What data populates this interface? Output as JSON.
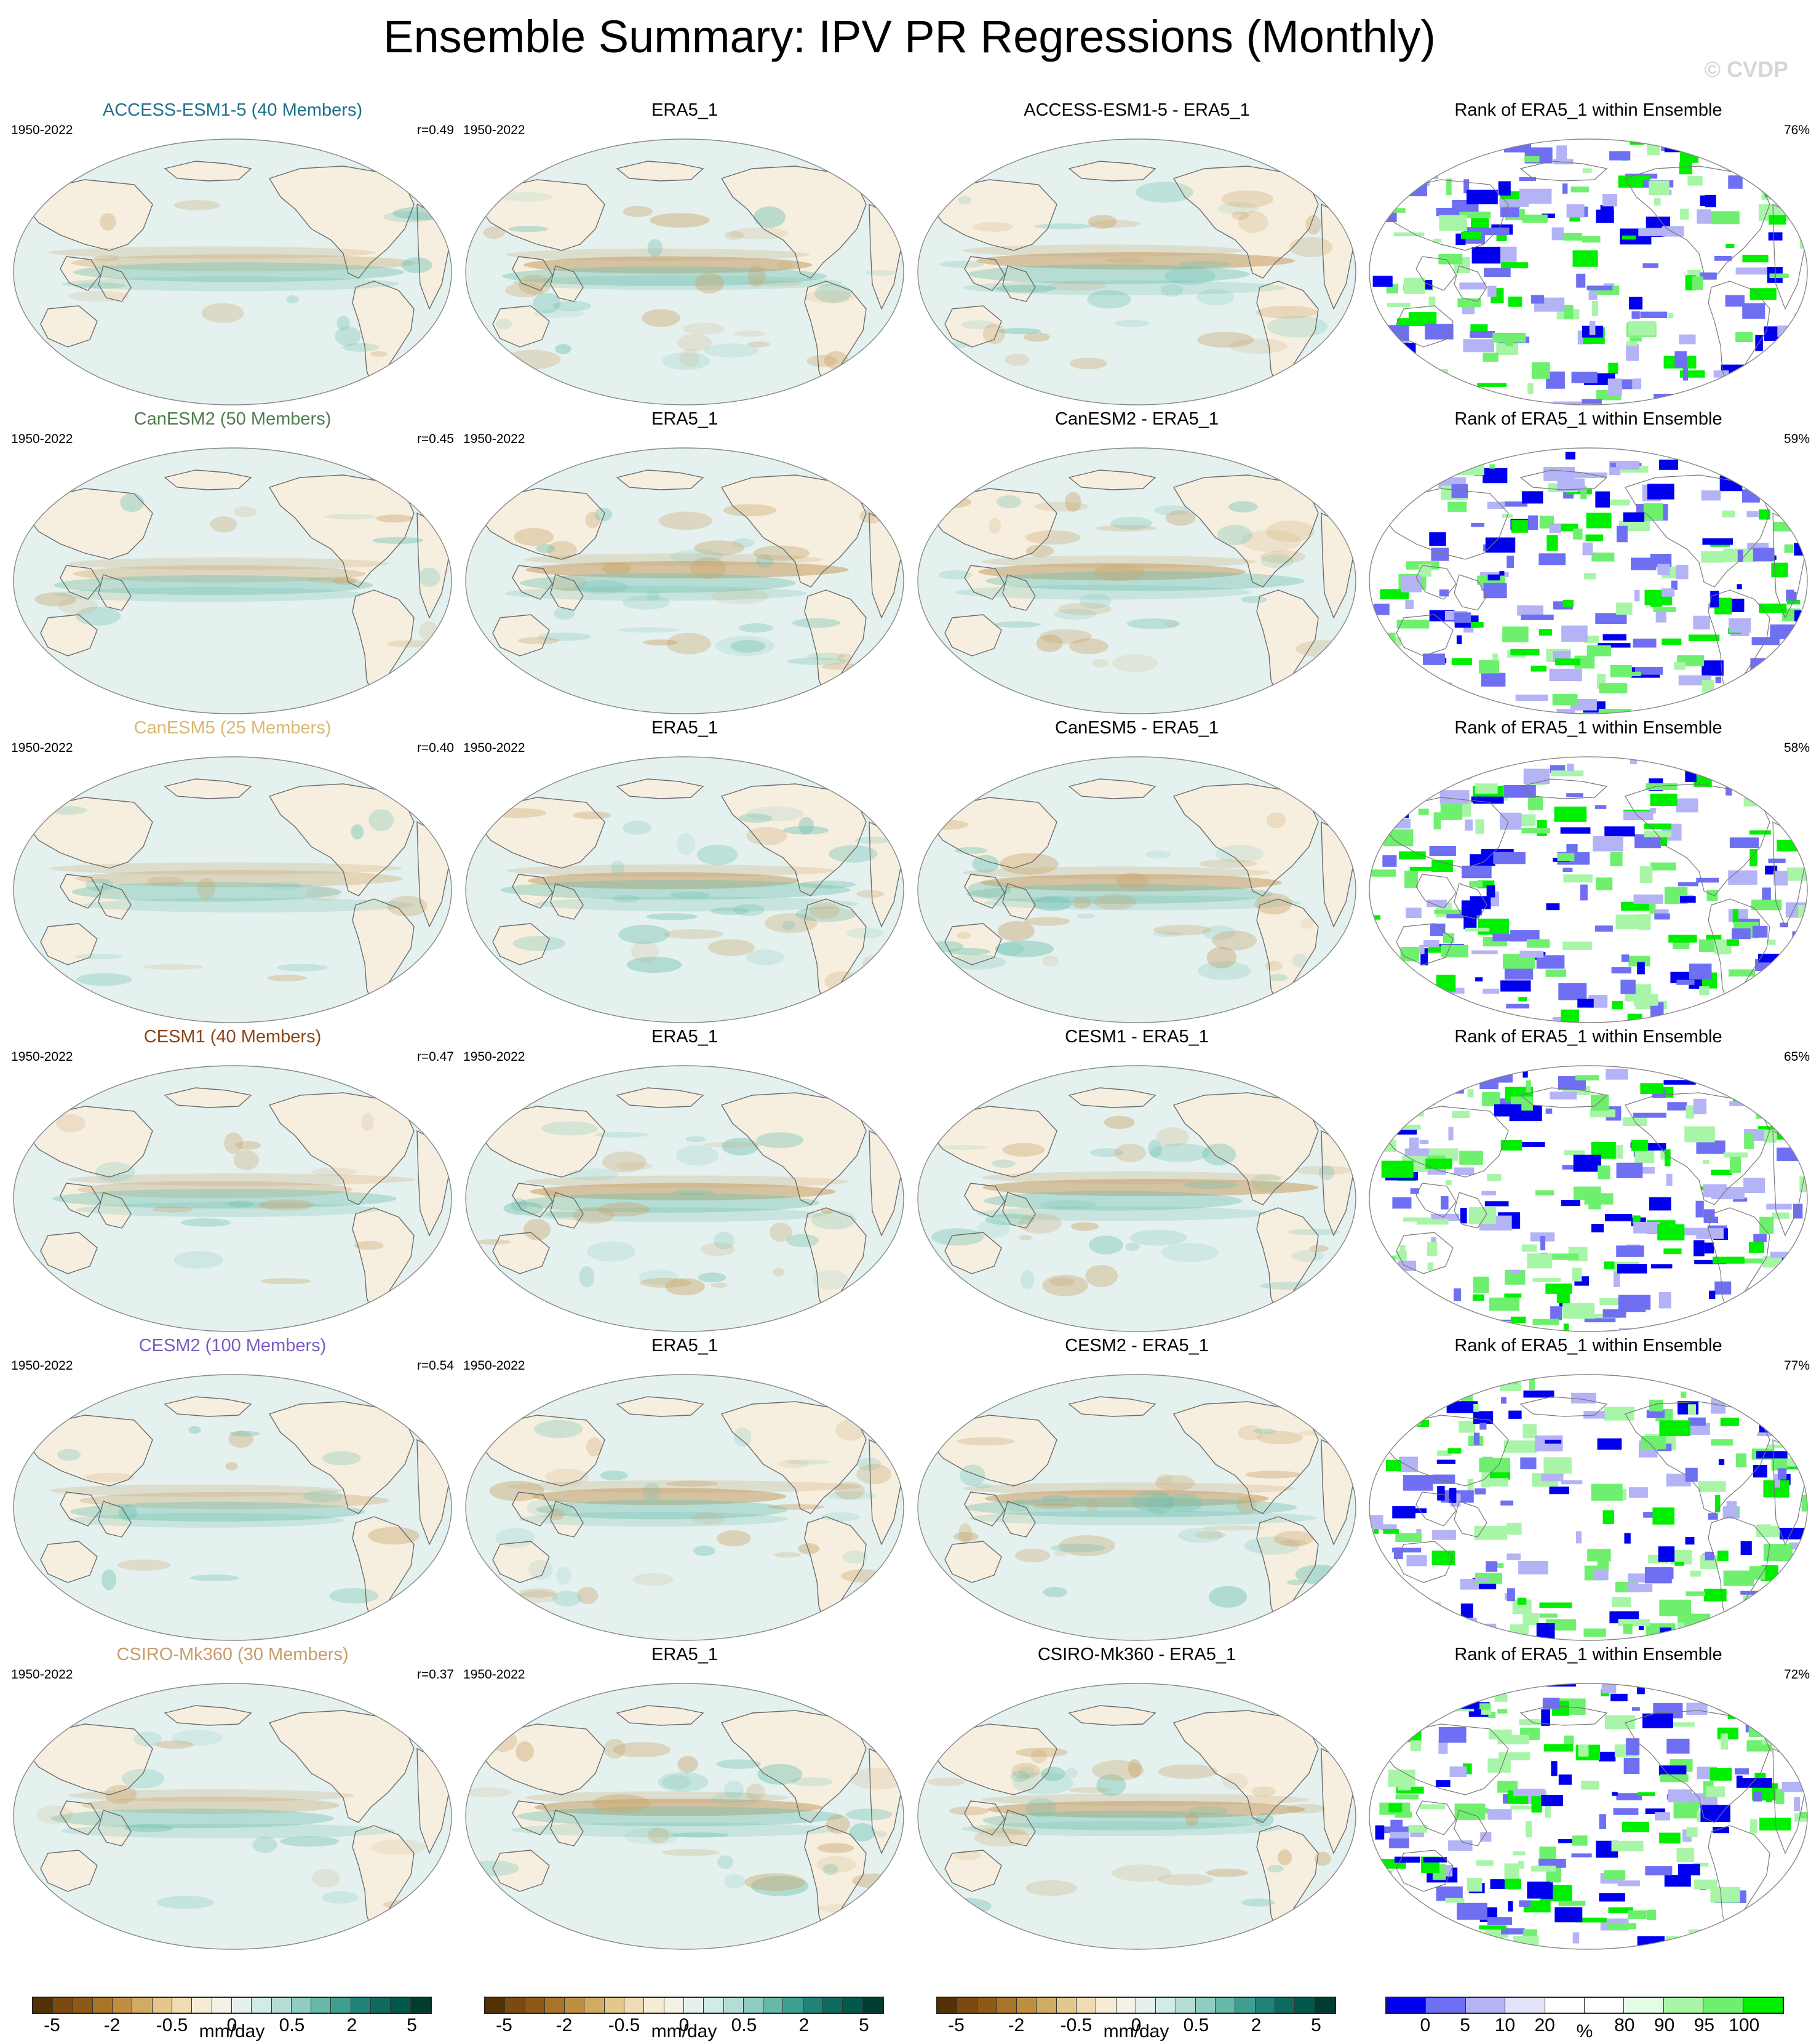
{
  "title": "Ensemble Summary: IPV PR Regressions (Monthly)",
  "watermark": "© CVDP",
  "colors": {
    "ocean_base": "#e4f1ef",
    "land_base": "#f6efe0",
    "brown": "#c9a46a",
    "teal": "#6fc0b0",
    "rank_blue": "#0000ee",
    "rank_green": "#00ee00"
  },
  "rows": [
    {
      "model": "ACCESS-ESM1-5 (40 Members)",
      "model_color": "#1f6f8b",
      "period": "1950-2022",
      "r": "r=0.49",
      "obs_title": "ERA5_1",
      "obs_period": "1950-2022",
      "diff_title": "ACCESS-ESM1-5 - ERA5_1",
      "rank_title": "Rank of ERA5_1 within Ensemble",
      "rank_pct": "76%"
    },
    {
      "model": "CanESM2 (50 Members)",
      "model_color": "#4e7d4e",
      "period": "1950-2022",
      "r": "r=0.45",
      "obs_title": "ERA5_1",
      "obs_period": "1950-2022",
      "diff_title": "CanESM2 - ERA5_1",
      "rank_title": "Rank of ERA5_1 within Ensemble",
      "rank_pct": "59%"
    },
    {
      "model": "CanESM5 (25 Members)",
      "model_color": "#d9b873",
      "period": "1950-2022",
      "r": "r=0.40",
      "obs_title": "ERA5_1",
      "obs_period": "1950-2022",
      "diff_title": "CanESM5 - ERA5_1",
      "rank_title": "Rank of ERA5_1 within Ensemble",
      "rank_pct": "58%"
    },
    {
      "model": "CESM1 (40 Members)",
      "model_color": "#8b4513",
      "period": "1950-2022",
      "r": "r=0.47",
      "obs_title": "ERA5_1",
      "obs_period": "1950-2022",
      "diff_title": "CESM1 - ERA5_1",
      "rank_title": "Rank of ERA5_1 within Ensemble",
      "rank_pct": "65%"
    },
    {
      "model": "CESM2 (100 Members)",
      "model_color": "#7a5cc4",
      "period": "1950-2022",
      "r": "r=0.54",
      "obs_title": "ERA5_1",
      "obs_period": "1950-2022",
      "diff_title": "CESM2 - ERA5_1",
      "rank_title": "Rank of ERA5_1 within Ensemble",
      "rank_pct": "77%"
    },
    {
      "model": "CSIRO-Mk360 (30 Members)",
      "model_color": "#c89c6a",
      "period": "1950-2022",
      "r": "r=0.37",
      "obs_title": "ERA5_1",
      "obs_period": "1950-2022",
      "diff_title": "CSIRO-Mk360 - ERA5_1",
      "rank_title": "Rank of ERA5_1 within Ensemble",
      "rank_pct": "72%"
    }
  ],
  "colorbars": {
    "pr": {
      "ticks": [
        "-5",
        "-2",
        "-0.5",
        "0",
        "0.5",
        "2",
        "5"
      ],
      "units": "mm/day",
      "colors": [
        "#543005",
        "#7a4a0f",
        "#8c5a14",
        "#a87428",
        "#bf8f3f",
        "#d1ab62",
        "#e3c78c",
        "#efdcb4",
        "#f6ecd6",
        "#f5f1e6",
        "#e6f1ef",
        "#d2ebe6",
        "#b5ddd6",
        "#8fccc1",
        "#66b8a9",
        "#3e9e8f",
        "#1f8476",
        "#0c6b5e",
        "#01594c",
        "#003c30"
      ]
    },
    "rank": {
      "ticks": [
        "0",
        "5",
        "10",
        "20",
        "80",
        "90",
        "95",
        "100"
      ],
      "units": "%",
      "colors": [
        "#0000ee",
        "#6f6ff3",
        "#b3b3f5",
        "#e3e3f8",
        "#ffffff",
        "#ffffff",
        "#e4fbe4",
        "#a8f5a8",
        "#6ef06e",
        "#00ee00"
      ]
    }
  }
}
